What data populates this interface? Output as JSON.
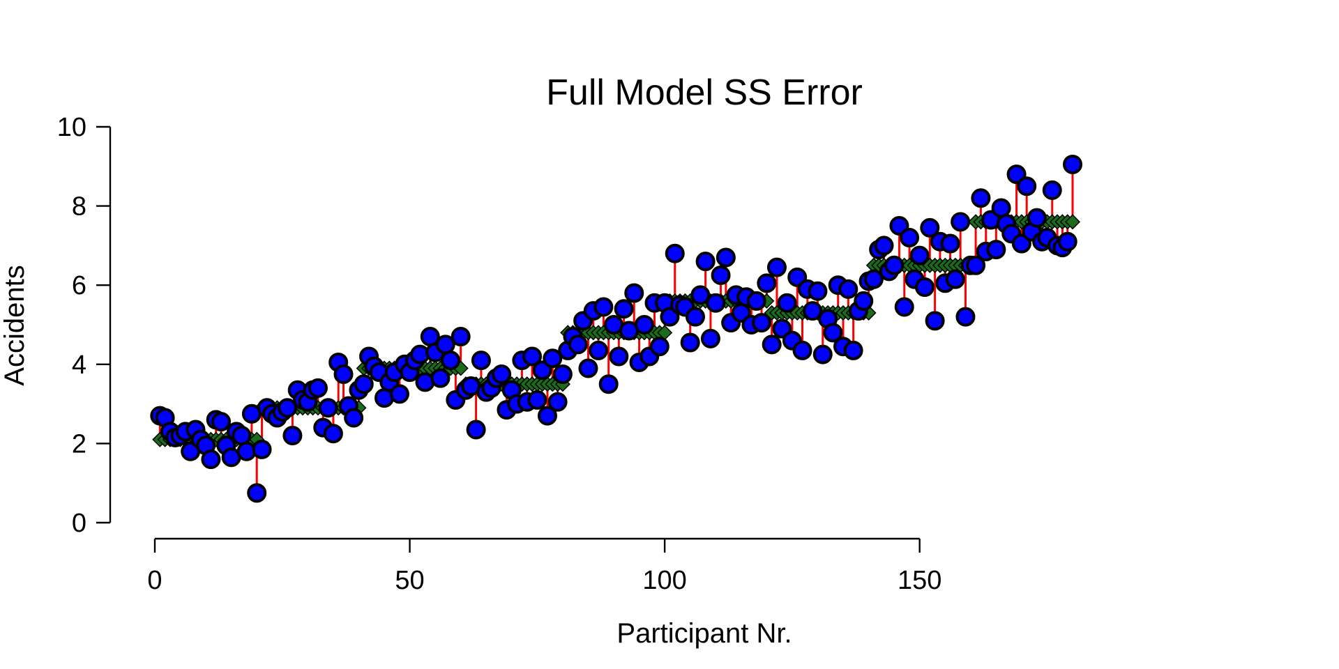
{
  "chart_data": {
    "type": "scatter",
    "title": "Full Model SS Error",
    "xlabel": "Participant Nr.",
    "ylabel": "Accidents",
    "xlim": [
      0,
      180
    ],
    "ylim": [
      0,
      10
    ],
    "x_ticks": [
      "0",
      "50",
      "100",
      "150"
    ],
    "y_ticks": [
      "0",
      "2",
      "4",
      "6",
      "8",
      "10"
    ],
    "grid": false,
    "legend": "none",
    "colors": {
      "observed_fill": "#0000ff",
      "observed_edge": "#000000",
      "model_fill": "#1a6b1a",
      "model_edge": "#000000",
      "error_line": "#ff0000"
    },
    "groups": [
      {
        "x_from": 1,
        "x_to": 20,
        "predicted": 2.1
      },
      {
        "x_from": 21,
        "x_to": 40,
        "predicted": 2.9
      },
      {
        "x_from": 41,
        "x_to": 60,
        "predicted": 3.9
      },
      {
        "x_from": 61,
        "x_to": 80,
        "predicted": 3.5
      },
      {
        "x_from": 81,
        "x_to": 100,
        "predicted": 4.8
      },
      {
        "x_from": 101,
        "x_to": 120,
        "predicted": 5.6
      },
      {
        "x_from": 121,
        "x_to": 140,
        "predicted": 5.3
      },
      {
        "x_from": 141,
        "x_to": 160,
        "predicted": 6.5
      },
      {
        "x_from": 161,
        "x_to": 180,
        "predicted": 7.6
      }
    ],
    "observed": [
      2.7,
      2.65,
      2.3,
      2.15,
      2.2,
      2.3,
      1.8,
      2.35,
      2.1,
      1.95,
      1.6,
      2.6,
      2.55,
      1.95,
      1.65,
      2.3,
      2.2,
      1.8,
      2.75,
      0.75,
      1.85,
      2.9,
      2.75,
      2.65,
      2.8,
      2.9,
      2.2,
      3.35,
      3.1,
      3.05,
      3.35,
      3.4,
      2.4,
      2.9,
      2.25,
      4.05,
      3.75,
      2.95,
      2.65,
      3.35,
      3.5,
      4.2,
      3.95,
      3.8,
      3.15,
      3.55,
      3.8,
      3.25,
      4.0,
      3.8,
      4.1,
      4.25,
      3.55,
      4.7,
      4.3,
      3.65,
      4.5,
      4.1,
      3.1,
      4.7,
      3.35,
      3.45,
      2.35,
      4.1,
      3.3,
      3.4,
      3.65,
      3.75,
      2.85,
      3.35,
      3.0,
      4.1,
      3.05,
      4.2,
      3.1,
      3.85,
      2.7,
      4.15,
      3.05,
      3.75,
      4.35,
      4.7,
      4.5,
      5.1,
      3.9,
      5.35,
      4.35,
      5.45,
      3.5,
      5.0,
      4.2,
      5.4,
      4.85,
      5.8,
      4.05,
      5.0,
      4.2,
      5.55,
      4.45,
      5.55,
      5.2,
      6.8,
      5.5,
      5.45,
      4.55,
      5.2,
      5.75,
      6.6,
      4.65,
      5.55,
      6.25,
      6.7,
      5.05,
      5.75,
      5.3,
      5.7,
      5.0,
      5.6,
      5.05,
      6.05,
      4.5,
      6.45,
      4.9,
      5.55,
      4.6,
      6.2,
      4.35,
      5.9,
      5.35,
      5.85,
      4.25,
      5.15,
      4.8,
      6.0,
      4.45,
      5.9,
      4.35,
      5.35,
      5.6,
      6.1,
      6.15,
      6.9,
      7.0,
      6.35,
      6.5,
      7.5,
      5.45,
      7.2,
      6.15,
      6.75,
      5.95,
      7.45,
      5.1,
      7.1,
      6.05,
      7.05,
      6.15,
      7.6,
      5.2,
      6.5,
      6.5,
      8.2,
      6.85,
      7.65,
      6.9,
      7.95,
      7.55,
      7.3,
      8.8,
      7.05,
      8.5,
      7.35,
      7.7,
      7.1,
      7.2,
      8.4,
      7.0,
      6.95,
      7.1,
      9.05
    ]
  }
}
